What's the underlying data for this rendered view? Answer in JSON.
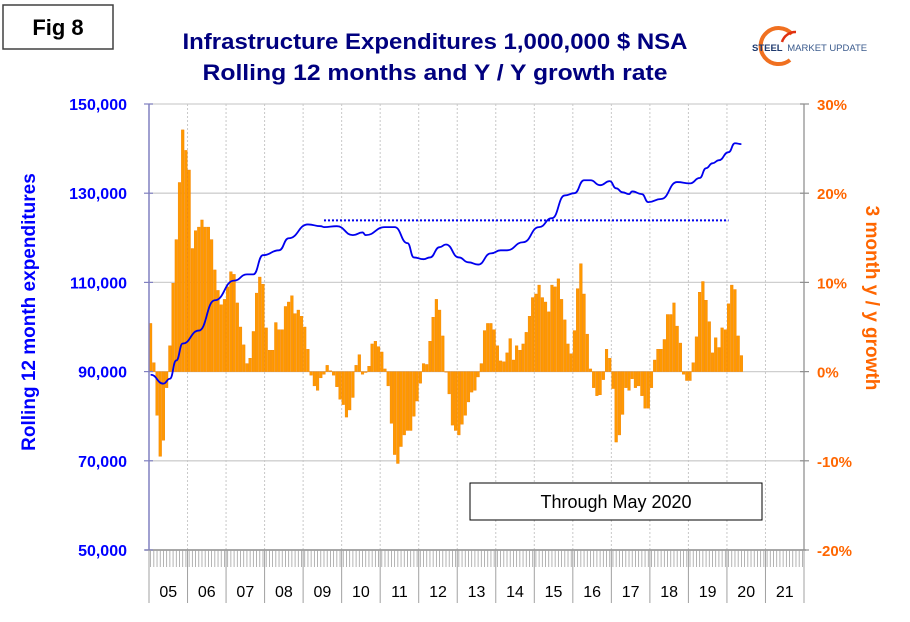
{
  "figure_label": "Fig 8",
  "logo": {
    "text_bold": "STEEL",
    "text_rest": "MARKET UPDATE"
  },
  "annotation": "Through May 2020",
  "chart_data": {
    "type": "bar+line",
    "title": [
      "Infrastructure Expenditures 1,000,000 $ NSA",
      "Rolling 12 months and Y / Y growth rate"
    ],
    "ylabel_left": "Rolling 12 month expenditures",
    "ylabel_right": "3 month y / y growth",
    "ylim_left": [
      50000,
      150000
    ],
    "ylim_right": [
      -20,
      30
    ],
    "yticks_left": [
      "50,000",
      "70,000",
      "90,000",
      "110,000",
      "130,000",
      "150,000"
    ],
    "yticks_right": [
      "-20%",
      "-10%",
      "0%",
      "10%",
      "20%",
      "30%"
    ],
    "xticks": [
      "05",
      "06",
      "07",
      "08",
      "09",
      "10",
      "11",
      "12",
      "13",
      "14",
      "15",
      "16",
      "17",
      "18",
      "19",
      "20",
      "21"
    ],
    "grid": true,
    "colors": {
      "line": "#0000ee",
      "bars": "#ff9900",
      "bar_edge": "#f08000",
      "left_axis": "#0000ff",
      "right_axis": "#ff6600",
      "title": "#00007f"
    },
    "bars": {
      "axis": "right",
      "start": "2005-01",
      "frequency": "monthly",
      "values": [
        5.4,
        1.0,
        -4.9,
        -9.5,
        -7.7,
        -1.8,
        2.9,
        9.9,
        14.8,
        21.2,
        27.1,
        24.8,
        22.6,
        13.8,
        15.8,
        16.2,
        17.0,
        16.2,
        16.2,
        14.8,
        11.4,
        9.1,
        7.5,
        8.1,
        9.5,
        11.2,
        10.9,
        7.7,
        5.0,
        3.0,
        0.9,
        1.5,
        4.5,
        8.8,
        10.6,
        9.8,
        4.9,
        2.4,
        2.4,
        5.5,
        4.7,
        4.7,
        7.3,
        7.8,
        8.5,
        6.5,
        6.9,
        6.2,
        5.0,
        2.5,
        -0.4,
        -1.6,
        -2.1,
        -0.7,
        -0.3,
        0.7,
        0.1,
        -0.4,
        -1.7,
        -3.1,
        -3.7,
        -5.1,
        -4.3,
        -2.9,
        0.7,
        1.9,
        -0.3,
        -0.1,
        0.6,
        3.1,
        3.4,
        2.8,
        2.2,
        0.3,
        -1.6,
        -5.8,
        -9.3,
        -10.3,
        -8.4,
        -7.1,
        -6.6,
        -6.6,
        -5.0,
        -3.3,
        -1.3,
        0.9,
        0.8,
        3.4,
        6.1,
        8.1,
        6.9,
        4.0,
        0.0,
        -2.5,
        -6.0,
        -6.6,
        -7.1,
        -5.9,
        -4.9,
        -3.4,
        -2.3,
        -2.1,
        -0.6,
        0.9,
        4.6,
        5.4,
        5.4,
        4.7,
        2.9,
        1.2,
        1.1,
        2.1,
        3.7,
        1.3,
        2.9,
        2.4,
        3.1,
        4.4,
        6.2,
        8.3,
        8.7,
        9.7,
        8.3,
        7.8,
        6.7,
        9.7,
        9.5,
        10.4,
        8.1,
        5.8,
        3.1,
        2.0,
        4.6,
        9.3,
        12.1,
        8.7,
        4.2,
        0.3,
        -1.8,
        -2.7,
        -2.6,
        -0.9,
        2.5,
        1.5,
        -1.9,
        -7.9,
        -7.1,
        -4.8,
        -1.8,
        -2.1,
        -0.8,
        -1.8,
        -1.6,
        -2.7,
        -4.1,
        -4.1,
        -1.8,
        1.3,
        2.5,
        2.5,
        3.6,
        6.4,
        6.4,
        7.7,
        5.1,
        3.2,
        -0.3,
        -1.0,
        -1.0,
        1.0,
        3.9,
        8.9,
        10.1,
        8.0,
        5.6,
        2.1,
        3.8,
        2.7,
        4.9,
        4.7,
        7.6,
        9.7,
        9.2,
        4.0,
        1.8
      ]
    },
    "line": {
      "axis": "left",
      "points": [
        [
          "2005-01",
          89300
        ],
        [
          "2005-05",
          87300
        ],
        [
          "2005-07",
          88400
        ],
        [
          "2005-09",
          92500
        ],
        [
          "2005-11",
          96300
        ],
        [
          "2006-04",
          99200
        ],
        [
          "2006-09",
          106000
        ],
        [
          "2007-03",
          110400
        ],
        [
          "2007-07",
          111800
        ],
        [
          "2007-09",
          111800
        ],
        [
          "2007-12",
          116100
        ],
        [
          "2008-05",
          117200
        ],
        [
          "2008-08",
          119900
        ],
        [
          "2009-02",
          123000
        ],
        [
          "2009-06",
          122600
        ],
        [
          "2009-07",
          122400
        ],
        [
          "2009-11",
          122600
        ],
        [
          "2010-04",
          120600
        ],
        [
          "2010-07",
          121200
        ],
        [
          "2010-08",
          120600
        ],
        [
          "2011-02",
          122400
        ],
        [
          "2011-05",
          122400
        ],
        [
          "2011-09",
          118800
        ],
        [
          "2011-11",
          115600
        ],
        [
          "2012-02",
          115200
        ],
        [
          "2012-04",
          115600
        ],
        [
          "2012-07",
          117900
        ],
        [
          "2012-09",
          118500
        ],
        [
          "2013-01",
          115600
        ],
        [
          "2013-04",
          114500
        ],
        [
          "2013-07",
          114000
        ],
        [
          "2013-11",
          116500
        ],
        [
          "2014-02",
          117200
        ],
        [
          "2014-04",
          117200
        ],
        [
          "2014-09",
          119000
        ],
        [
          "2015-02",
          122400
        ],
        [
          "2015-06",
          124400
        ],
        [
          "2015-10",
          129500
        ],
        [
          "2016-01",
          130000
        ],
        [
          "2016-04",
          132900
        ],
        [
          "2016-06",
          132900
        ],
        [
          "2016-09",
          131800
        ],
        [
          "2016-12",
          132700
        ],
        [
          "2017-02",
          131100
        ],
        [
          "2017-04",
          130200
        ],
        [
          "2017-06",
          129800
        ],
        [
          "2017-07",
          130400
        ],
        [
          "2017-10",
          129800
        ],
        [
          "2017-12",
          128000
        ],
        [
          "2018-04",
          128700
        ],
        [
          "2018-09",
          132500
        ],
        [
          "2019-01",
          132200
        ],
        [
          "2019-04",
          133400
        ],
        [
          "2019-06",
          135600
        ],
        [
          "2019-08",
          136700
        ],
        [
          "2019-10",
          137400
        ],
        [
          "2020-01",
          139200
        ],
        [
          "2020-03",
          141200
        ],
        [
          "2020-05",
          141000
        ]
      ]
    },
    "reference_line": {
      "axis": "left",
      "value": 123900,
      "from": "2009-07",
      "to": "2020-01",
      "style": "dotted"
    }
  }
}
